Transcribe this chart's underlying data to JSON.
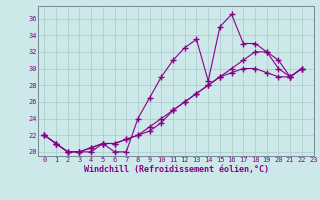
{
  "background_color": "#cce8e8",
  "line_color": "#880088",
  "grid_color": "#aacccc",
  "spine_color": "#778899",
  "xlabel": "Windchill (Refroidissement éolien,°C)",
  "ylim": [
    19.5,
    37.5
  ],
  "xlim": [
    -0.5,
    23
  ],
  "yticks": [
    20,
    22,
    24,
    26,
    28,
    30,
    32,
    34,
    36
  ],
  "xticks": [
    0,
    1,
    2,
    3,
    4,
    5,
    6,
    7,
    8,
    9,
    10,
    11,
    12,
    13,
    14,
    15,
    16,
    17,
    18,
    19,
    20,
    21,
    22,
    23
  ],
  "series": [
    [
      22,
      21,
      20,
      20,
      20,
      21,
      20,
      20,
      24,
      26.5,
      29,
      31,
      32.5,
      33.5,
      28.5,
      35,
      36.5,
      33,
      33,
      32,
      30,
      29,
      30
    ],
    [
      22,
      21,
      20,
      20,
      20.5,
      21,
      21,
      21.5,
      22,
      22.5,
      23.5,
      25,
      26,
      27,
      28,
      29,
      30,
      31,
      32,
      32,
      31,
      29,
      30
    ],
    [
      22,
      21,
      20,
      20,
      20.5,
      21,
      21,
      21.5,
      22,
      23,
      24,
      25,
      26,
      27,
      28,
      29,
      29.5,
      30,
      30,
      29.5,
      29,
      29,
      30
    ]
  ],
  "tick_fontsize": 5.0,
  "xlabel_fontsize": 6.0
}
